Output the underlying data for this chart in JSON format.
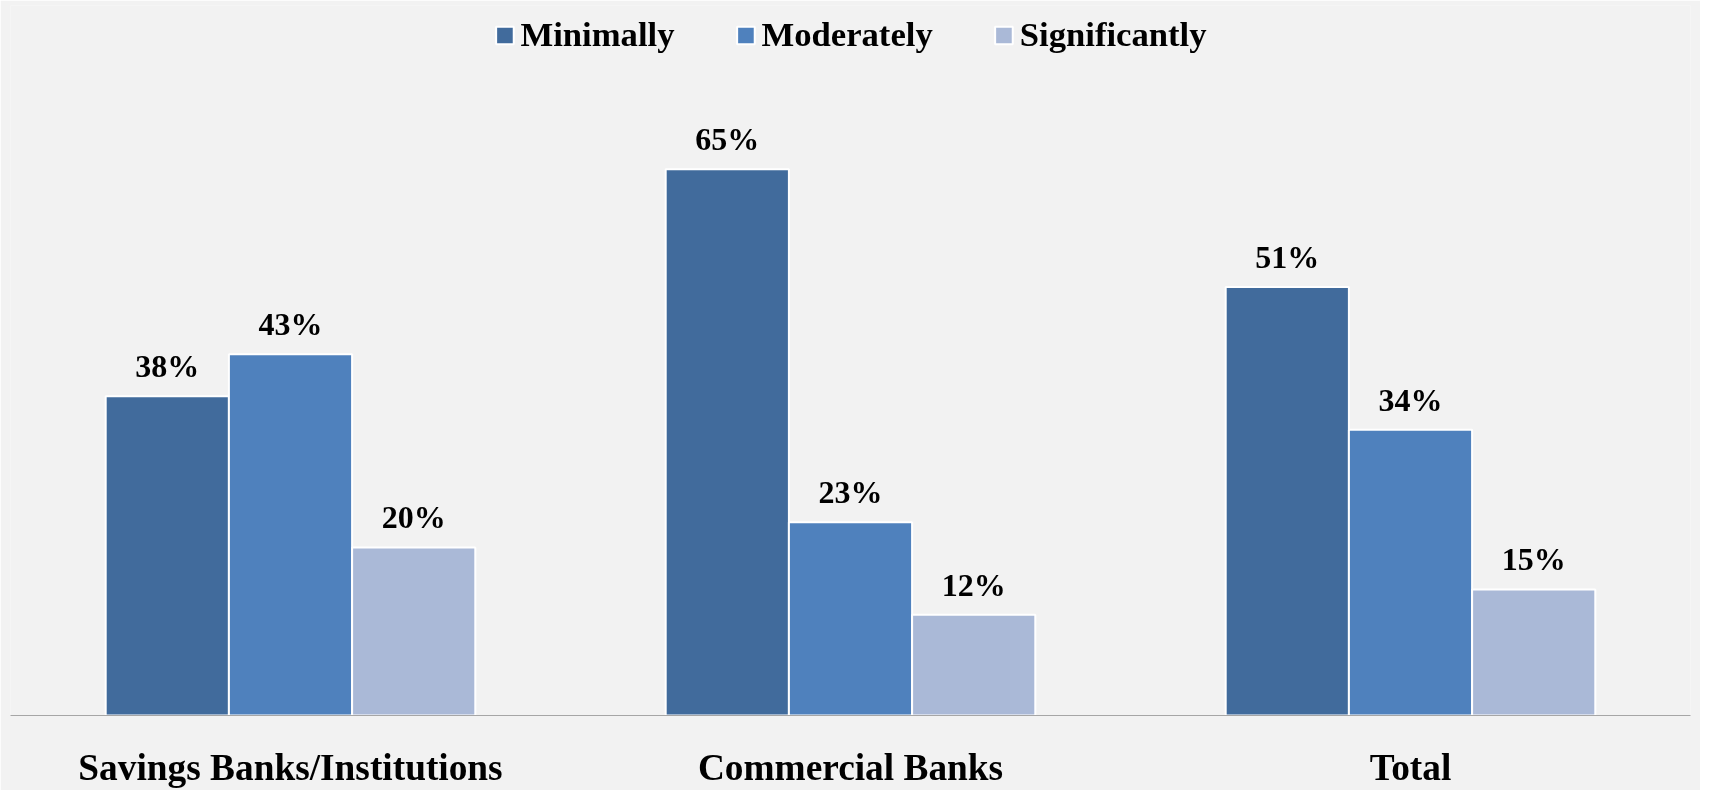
{
  "chart_data": {
    "type": "bar",
    "categories": [
      "Savings Banks/Institutions",
      "Commercial Banks",
      "Total"
    ],
    "series": [
      {
        "name": "Minimally",
        "color": "#416b9c",
        "values": [
          38,
          65,
          51
        ],
        "value_labels": [
          "38%",
          "65%",
          "51%"
        ]
      },
      {
        "name": "Moderately",
        "color": "#4f81bd",
        "values": [
          43,
          23,
          34
        ],
        "value_labels": [
          "43%",
          "23%",
          "34%"
        ]
      },
      {
        "name": "Significantly",
        "color": "#aab9d7",
        "values": [
          20,
          12,
          15
        ],
        "value_labels": [
          "20%",
          "12%",
          "15%"
        ]
      }
    ],
    "legend": "top",
    "grid": false
  }
}
